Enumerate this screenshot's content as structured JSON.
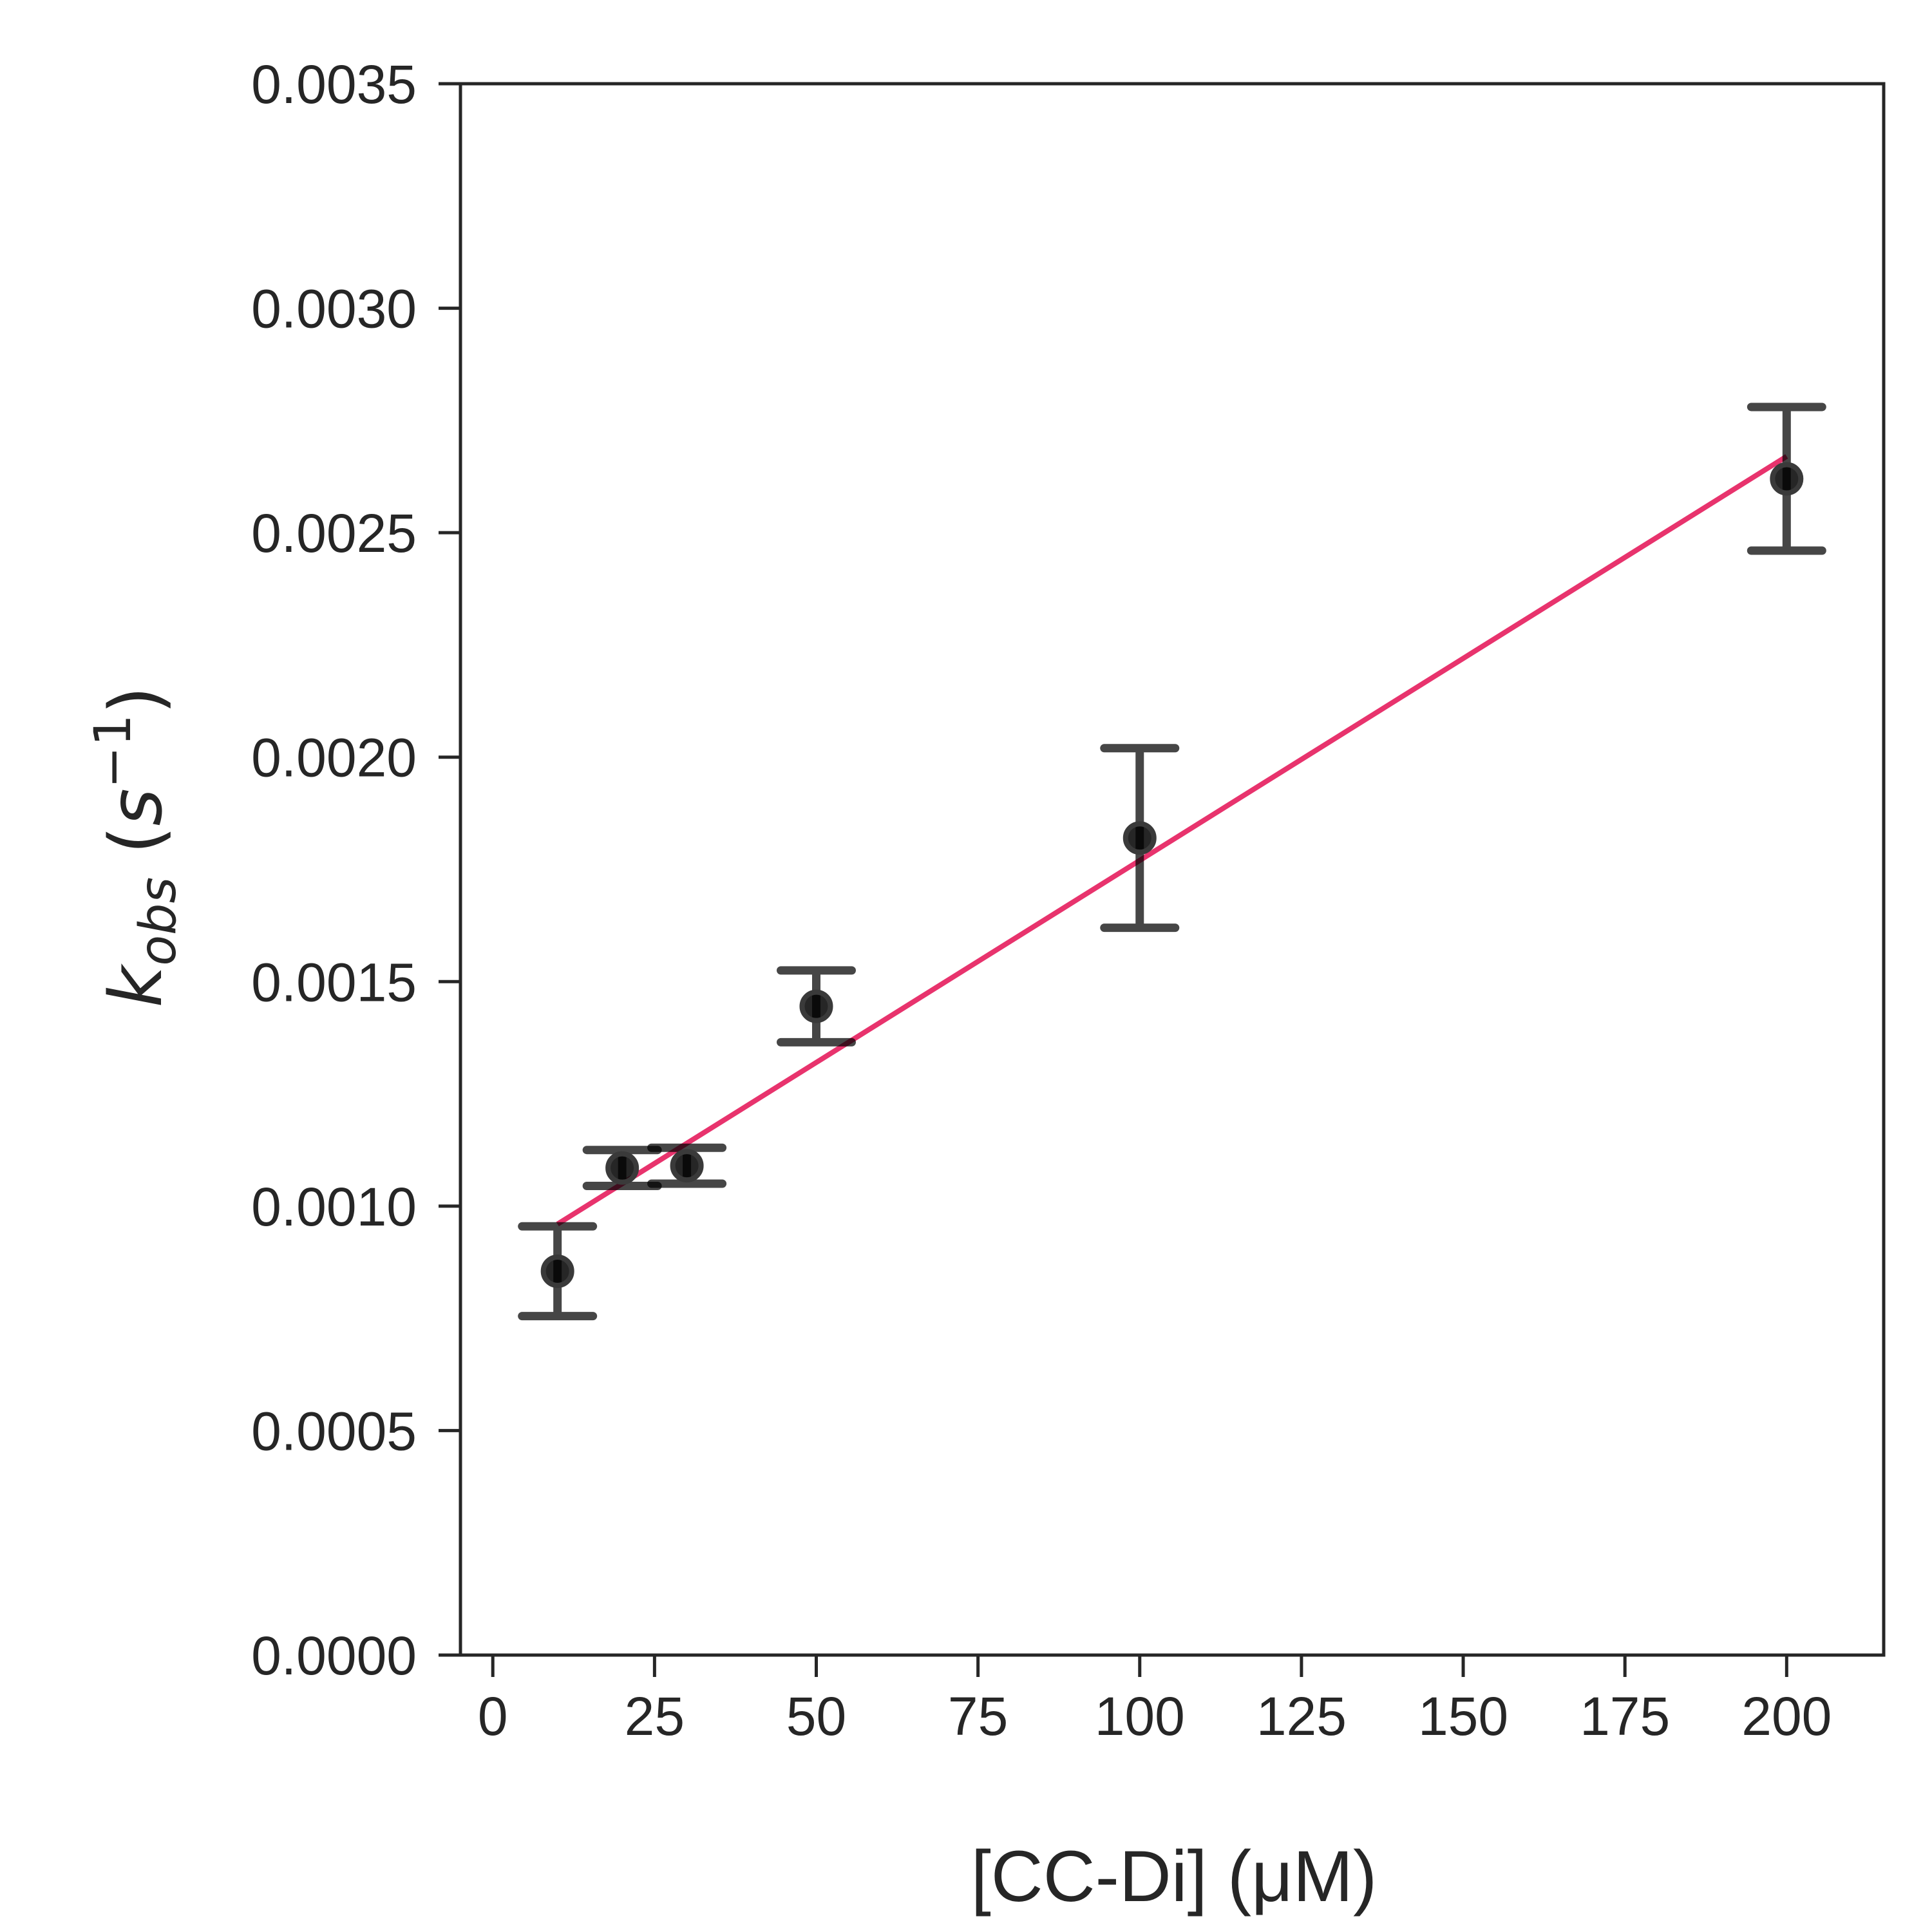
{
  "chart_data": {
    "type": "scatter",
    "xlabel": "[CC-Di] (μM)",
    "ylabel": {
      "symbol": "k",
      "subscript": "obs",
      "unit_open": " (",
      "unit": "s",
      "unit_exponent": "−1",
      "unit_close": ")"
    },
    "xlim": [
      -5,
      215
    ],
    "ylim": [
      0,
      0.0035
    ],
    "xticks": [
      0,
      25,
      50,
      75,
      100,
      125,
      150,
      175,
      200
    ],
    "xtick_labels": [
      "0",
      "25",
      "50",
      "75",
      "100",
      "125",
      "150",
      "175",
      "200"
    ],
    "yticks": [
      0,
      0.0005,
      0.001,
      0.0015,
      0.002,
      0.0025,
      0.003,
      0.0035
    ],
    "ytick_labels": [
      "0.0000",
      "0.0005",
      "0.0010",
      "0.0015",
      "0.0020",
      "0.0025",
      "0.0030",
      "0.0035"
    ],
    "grid": false,
    "series": [
      {
        "x": [
          10,
          20,
          30,
          50,
          100,
          200
        ],
        "y": [
          0.000855,
          0.001085,
          0.00109,
          0.001445,
          0.00182,
          0.00262
        ],
        "yerr": [
          0.0001,
          4e-05,
          4e-05,
          8e-05,
          0.0002,
          0.00016
        ],
        "color": "#000000"
      }
    ],
    "fit_line": {
      "x": [
        10,
        200
      ],
      "y": [
        0.00096,
        0.00267
      ],
      "color": "#e8336d"
    }
  }
}
